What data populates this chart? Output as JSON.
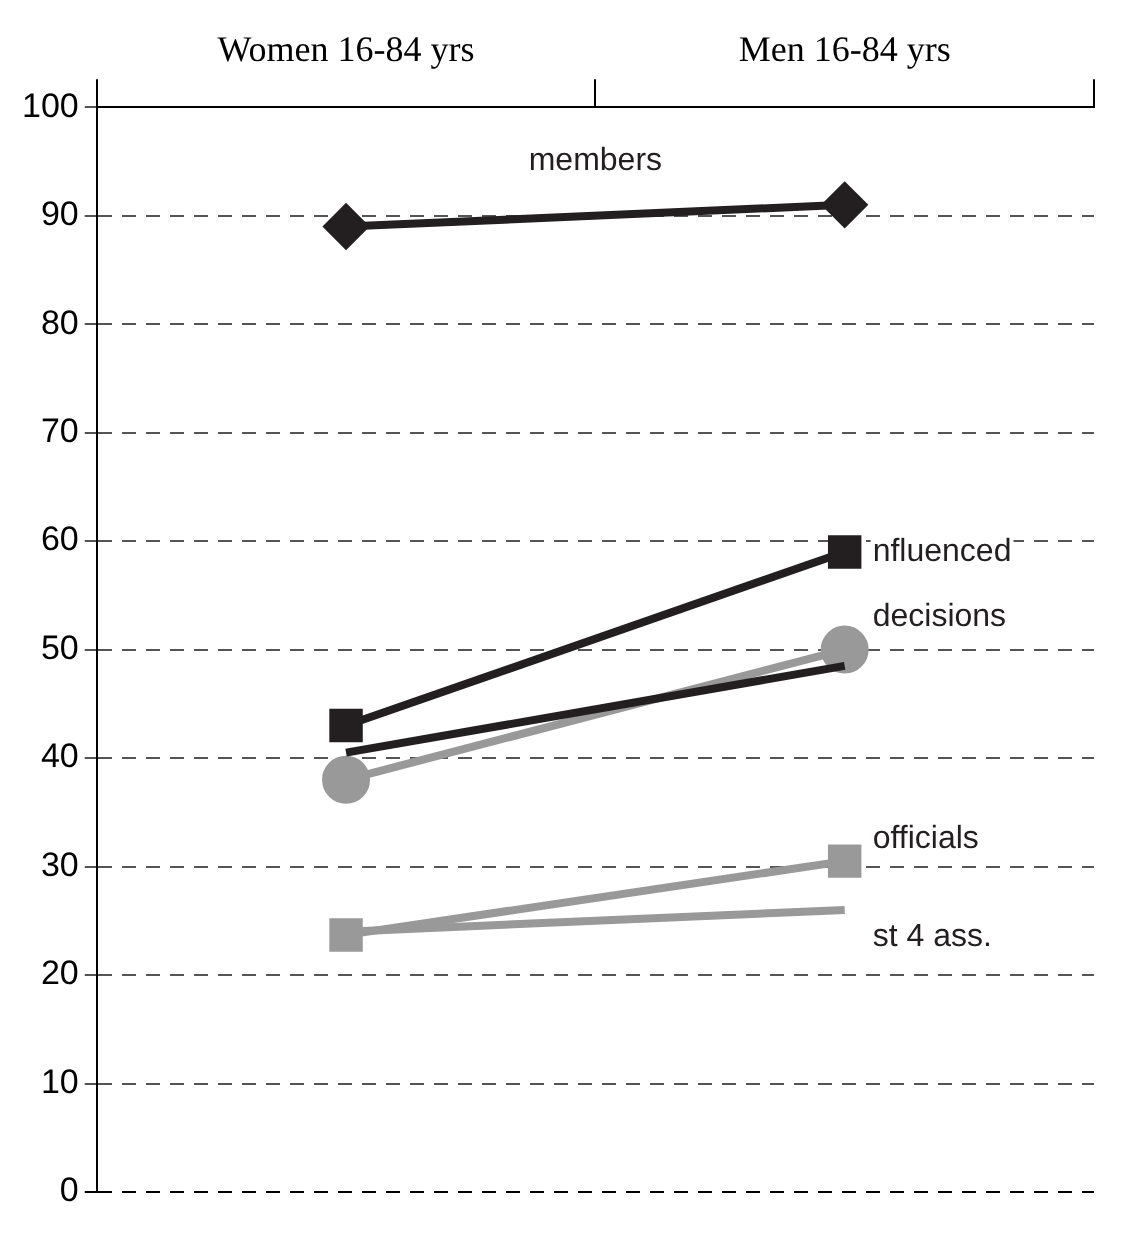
{
  "chart_data": {
    "type": "line",
    "categories": [
      "Women 16-84 yrs",
      "Men 16-84 yrs"
    ],
    "series": [
      {
        "color": "#231f20",
        "marker": "diamond",
        "values": [
          89,
          91
        ]
      },
      {
        "color": "#231f20",
        "marker": "square",
        "values": [
          43,
          59
        ]
      },
      {
        "color": "#231f20",
        "marker": "none",
        "values": [
          40.5,
          48.5
        ]
      },
      {
        "color": "#999999",
        "marker": "circle",
        "values": [
          38,
          50
        ]
      },
      {
        "color": "#999999",
        "marker": "square",
        "values": [
          23.7,
          30.5
        ]
      },
      {
        "color": "#999999",
        "marker": "none",
        "values": [
          24,
          26
        ]
      }
    ],
    "ylim": [
      0,
      100
    ],
    "yticks": [
      0,
      10,
      20,
      30,
      40,
      50,
      60,
      70,
      80,
      90,
      100
    ],
    "grid": "y",
    "legend": false,
    "annotations": [
      "members",
      "nfluenced",
      "decisions",
      "officials",
      "st 4 ass."
    ]
  }
}
